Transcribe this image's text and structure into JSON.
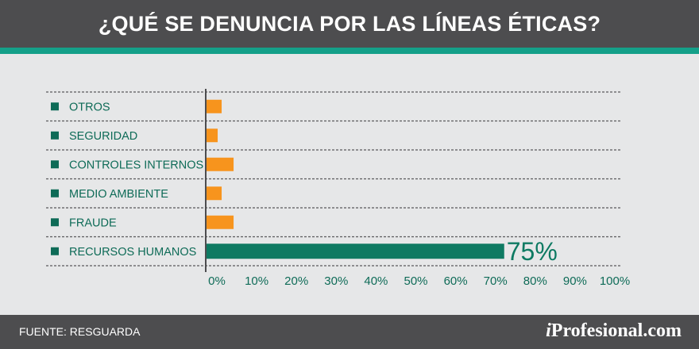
{
  "title": "¿QUÉ SE DENUNCIA POR LAS LÍNEAS ÉTICAS?",
  "footer": {
    "source": "FUENTE: RESGUARDA",
    "brand_prefix": "i",
    "brand_name": "Profesional.com"
  },
  "colors": {
    "header_bg": "#4d4d4f",
    "accent": "#14a089",
    "background": "#e6e7e8",
    "label_text": "#0e6b57",
    "bar_orange": "#f7941d",
    "bar_green": "#0e7a62"
  },
  "chart_data": {
    "type": "bar",
    "orientation": "horizontal",
    "title": "¿QUÉ SE DENUNCIA POR LAS LÍNEAS ÉTICAS?",
    "categories": [
      "OTROS",
      "SEGURIDAD",
      "CONTROLES INTERNOS",
      "MEDIO AMBIENTE",
      "FRAUDE",
      "RECURSOS HUMANOS"
    ],
    "values": [
      4,
      3,
      7,
      4,
      7,
      75
    ],
    "highlight_index": 5,
    "data_labels": [
      "",
      "",
      "",
      "",
      "",
      "75%"
    ],
    "xlim": [
      0,
      100
    ],
    "x_ticks": [
      "0%",
      "10%",
      "20%",
      "30%",
      "40%",
      "50%",
      "60%",
      "70%",
      "80%",
      "90%",
      "100%"
    ],
    "xlabel": "",
    "ylabel": "",
    "grid": "dashed row separators"
  }
}
